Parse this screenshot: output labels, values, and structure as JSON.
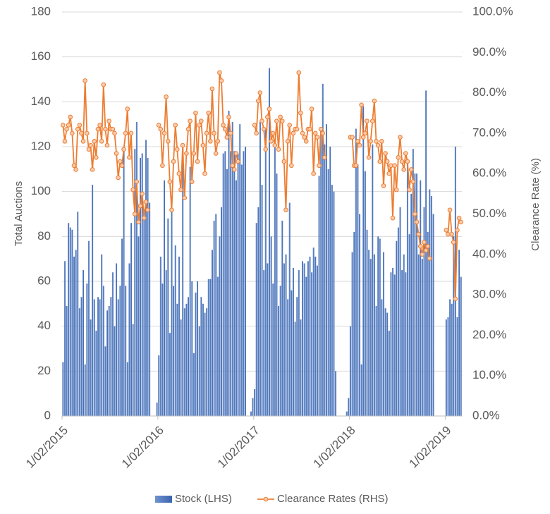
{
  "chart_data": {
    "type": "combo",
    "ylabel": "Total Auctions",
    "y2label": "Clearance Rate (%)",
    "ylim": [
      0,
      180
    ],
    "yticks": [
      0,
      20,
      40,
      60,
      80,
      100,
      120,
      140,
      160,
      180
    ],
    "y2lim": [
      0,
      100
    ],
    "y2ticks": [
      {
        "value": 0,
        "label": "0.0%"
      },
      {
        "value": 10,
        "label": "10.0%"
      },
      {
        "value": 20,
        "label": "20.0%"
      },
      {
        "value": 30,
        "label": "30.0%"
      },
      {
        "value": 40,
        "label": "40.0%"
      },
      {
        "value": 50,
        "label": "50.0%"
      },
      {
        "value": 60,
        "label": "60.0%"
      },
      {
        "value": 70,
        "label": "70.0%"
      },
      {
        "value": 80,
        "label": "80.0%"
      },
      {
        "value": 90,
        "label": "90.0%"
      },
      {
        "value": 100,
        "label": "100.0%"
      }
    ],
    "grid": true,
    "legend": "bottom",
    "categories": [
      "1/02/2015",
      null,
      null,
      null,
      null,
      null,
      null,
      null,
      null,
      null,
      null,
      null,
      null,
      null,
      null,
      null,
      null,
      null,
      null,
      null,
      null,
      null,
      null,
      null,
      null,
      null,
      null,
      null,
      null,
      null,
      null,
      null,
      null,
      null,
      null,
      null,
      null,
      null,
      null,
      null,
      null,
      null,
      null,
      null,
      null,
      null,
      null,
      null,
      null,
      null,
      null,
      null,
      "1/02/2016",
      null,
      null,
      null,
      null,
      null,
      null,
      null,
      null,
      null,
      null,
      null,
      null,
      null,
      null,
      null,
      null,
      null,
      null,
      null,
      null,
      null,
      null,
      null,
      null,
      null,
      null,
      null,
      null,
      null,
      null,
      null,
      null,
      null,
      null,
      null,
      null,
      null,
      null,
      null,
      null,
      null,
      null,
      null,
      null,
      null,
      null,
      null,
      null,
      null,
      null,
      null,
      "1/02/2017",
      null,
      null,
      null,
      null,
      null,
      null,
      null,
      null,
      null,
      null,
      null,
      null,
      null,
      null,
      null,
      null,
      null,
      null,
      null,
      null,
      null,
      null,
      null,
      null,
      null,
      null,
      null,
      null,
      null,
      null,
      null,
      null,
      null,
      null,
      null,
      null,
      null,
      null,
      null,
      null,
      null,
      null,
      null,
      null,
      null,
      null,
      null,
      null,
      null,
      null,
      null,
      "1/02/2018",
      null,
      null,
      null,
      null,
      null,
      null,
      null,
      null,
      null,
      null,
      null,
      null,
      null,
      null,
      null,
      null,
      null,
      null,
      null,
      null,
      null,
      null,
      null,
      null,
      null,
      null,
      null,
      null,
      null,
      null,
      null,
      null,
      null,
      null,
      null,
      null,
      null,
      null,
      null,
      null,
      null,
      null,
      null,
      null,
      null,
      null,
      null,
      null,
      null,
      null,
      null,
      "1/02/2019",
      null,
      null,
      null,
      null,
      null,
      null,
      null,
      null
    ],
    "series": [
      {
        "name": "Stock (LHS)",
        "type": "bar",
        "color": "#4472c4",
        "values": [
          24,
          69,
          49,
          86,
          84,
          83,
          71,
          74,
          91,
          48,
          53,
          65,
          23,
          59,
          78,
          43,
          103,
          52,
          38,
          53,
          52,
          72,
          58,
          31,
          47,
          49,
          53,
          64,
          40,
          68,
          52,
          58,
          79,
          119,
          58,
          24,
          68,
          86,
          41,
          119,
          131,
          80,
          115,
          117,
          92,
          123,
          115,
          95,
          0,
          0,
          0,
          6,
          27,
          71,
          59,
          105,
          65,
          88,
          37,
          98,
          58,
          76,
          50,
          71,
          43,
          120,
          48,
          50,
          53,
          111,
          60,
          28,
          55,
          60,
          40,
          53,
          50,
          46,
          48,
          61,
          61,
          74,
          87,
          90,
          62,
          80,
          93,
          117,
          118,
          110,
          136,
          118,
          131,
          118,
          105,
          117,
          130,
          112,
          118,
          120,
          0,
          0,
          2,
          8,
          12,
          86,
          93,
          131,
          103,
          65,
          128,
          68,
          155,
          80,
          59,
          120,
          108,
          49,
          58,
          87,
          68,
          72,
          52,
          95,
          56,
          66,
          42,
          53,
          65,
          43,
          69,
          68,
          62,
          69,
          71,
          64,
          75,
          71,
          67,
          107,
          128,
          148,
          121,
          130,
          110,
          120,
          103,
          100,
          20,
          0,
          0,
          0,
          0,
          0,
          2,
          8,
          40,
          73,
          82,
          128,
          112,
          90,
          23,
          138,
          109,
          83,
          74,
          70,
          121,
          72,
          49,
          80,
          79,
          52,
          73,
          48,
          46,
          38,
          64,
          66,
          63,
          78,
          84,
          93,
          65,
          72,
          64,
          114,
          81,
          99,
          119,
          108,
          108,
          72,
          105,
          70,
          93,
          145,
          82,
          101,
          98,
          90,
          0,
          0,
          0,
          0,
          0,
          0,
          43,
          44,
          52,
          50,
          80,
          120,
          44,
          74,
          62
        ]
      },
      {
        "name": "Clearance Rates (RHS)",
        "type": "line",
        "axis": "y2",
        "color": "#ed7d31",
        "values": [
          72,
          68,
          71,
          72,
          74,
          70,
          62,
          61,
          71,
          72,
          70,
          68,
          83,
          70,
          66,
          67,
          61,
          68,
          64,
          71,
          72,
          68,
          82,
          71,
          67,
          73,
          71,
          71,
          70,
          65,
          59,
          63,
          62,
          66,
          70,
          76,
          64,
          70,
          56,
          50,
          58,
          48,
          52,
          55,
          49,
          53,
          51,
          null,
          null,
          null,
          null,
          null,
          72,
          71,
          62,
          70,
          79,
          68,
          58,
          51,
          63,
          72,
          66,
          60,
          56,
          67,
          54,
          65,
          71,
          73,
          58,
          65,
          75,
          63,
          72,
          73,
          67,
          60,
          70,
          75,
          68,
          81,
          70,
          65,
          68,
          85,
          83,
          72,
          71,
          69,
          74,
          70,
          62,
          61,
          65,
          63,
          null,
          null,
          null,
          null,
          null,
          null,
          null,
          null,
          72,
          70,
          78,
          80,
          73,
          71,
          66,
          74,
          76,
          68,
          70,
          67,
          73,
          66,
          74,
          73,
          63,
          51,
          68,
          72,
          62,
          70,
          71,
          71,
          85,
          75,
          70,
          69,
          68,
          71,
          71,
          76,
          60,
          70,
          69,
          62,
          71,
          70,
          64,
          null,
          null,
          null,
          null,
          null,
          null,
          null,
          null,
          null,
          null,
          null,
          null,
          null,
          69,
          69,
          62,
          62,
          68,
          67,
          77,
          69,
          70,
          73,
          64,
          68,
          73,
          78,
          68,
          67,
          63,
          68,
          57,
          65,
          63,
          60,
          62,
          49,
          62,
          56,
          64,
          69,
          63,
          61,
          65,
          63,
          56,
          61,
          58,
          50,
          48,
          45,
          42,
          40,
          43,
          41,
          42,
          39,
          null,
          null,
          null,
          null,
          null,
          null,
          null,
          null,
          46,
          45,
          51,
          45,
          43,
          29,
          46,
          49,
          48
        ]
      }
    ]
  }
}
